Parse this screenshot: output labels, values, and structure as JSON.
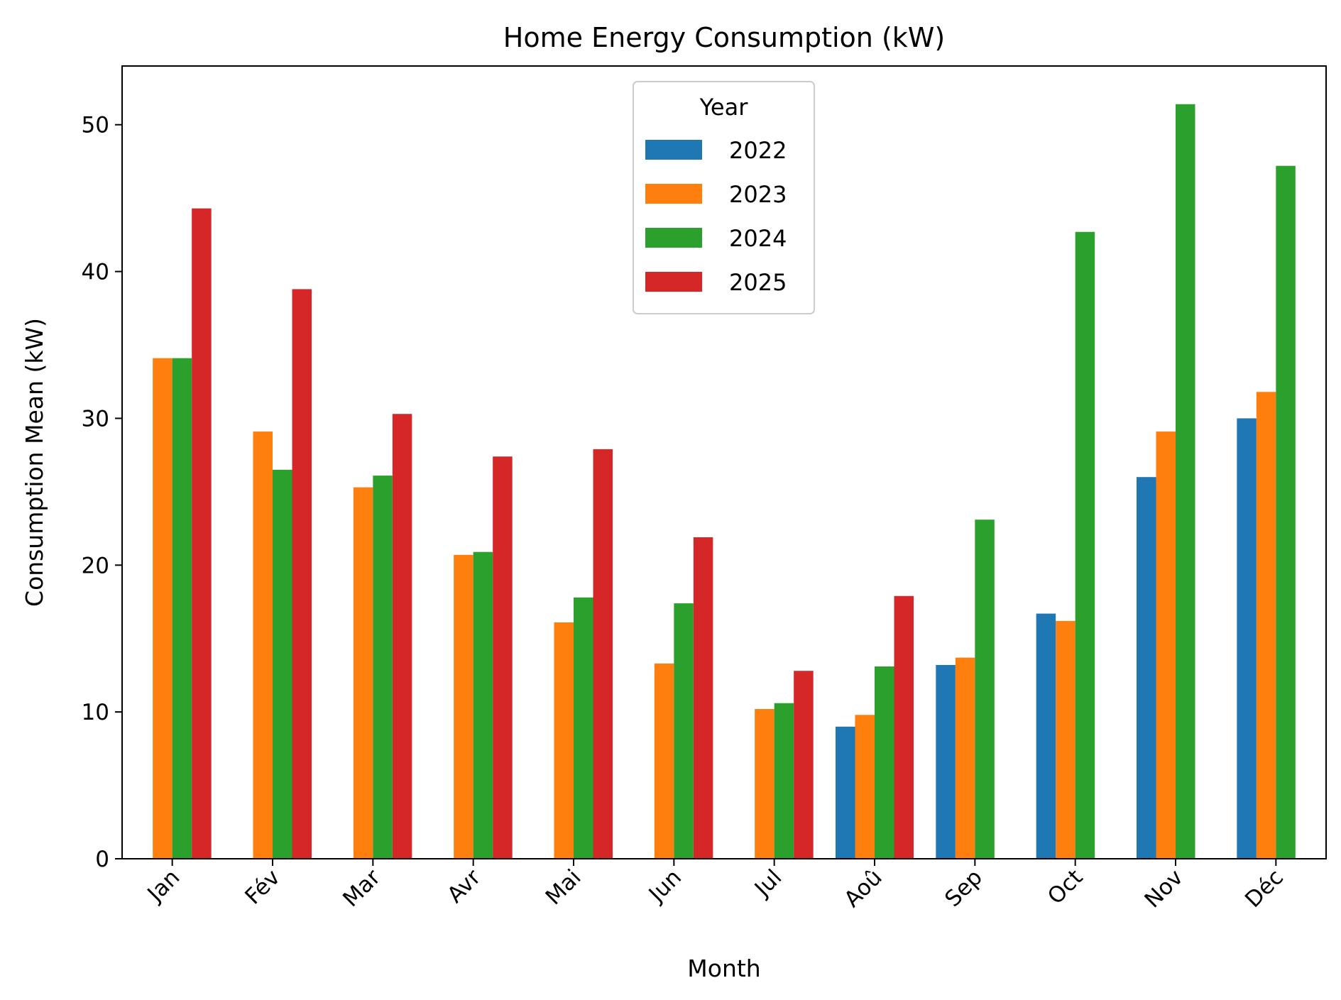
{
  "chart_data": {
    "type": "bar",
    "title": "Home Energy Consumption (kW)",
    "xlabel": "Month",
    "ylabel": "Consumption Mean (kW)",
    "ylim": [
      0,
      54
    ],
    "yticks": [
      0,
      10,
      20,
      30,
      40,
      50
    ],
    "grid": false,
    "legend": {
      "title": "Year",
      "placement": "top-center"
    },
    "categories": [
      "Jan",
      "Fév",
      "Mar",
      "Avr",
      "Mai",
      "Jun",
      "Jul",
      "Aoû",
      "Sep",
      "Oct",
      "Nov",
      "Déc"
    ],
    "series": [
      {
        "name": "2022",
        "color": "#1f77b4",
        "values": [
          null,
          null,
          null,
          null,
          null,
          null,
          null,
          9.0,
          13.2,
          16.7,
          26.0,
          30.0
        ]
      },
      {
        "name": "2023",
        "color": "#ff7f0e",
        "values": [
          34.1,
          29.1,
          25.3,
          20.7,
          16.1,
          13.3,
          10.2,
          9.8,
          13.7,
          16.2,
          29.1,
          31.8
        ]
      },
      {
        "name": "2024",
        "color": "#2ca02c",
        "values": [
          34.1,
          26.5,
          26.1,
          20.9,
          17.8,
          17.4,
          10.6,
          13.1,
          23.1,
          42.7,
          51.4,
          47.2
        ]
      },
      {
        "name": "2025",
        "color": "#d62728",
        "values": [
          44.3,
          38.8,
          30.3,
          27.4,
          27.9,
          21.9,
          12.8,
          17.9,
          null,
          null,
          null,
          null
        ]
      }
    ]
  }
}
